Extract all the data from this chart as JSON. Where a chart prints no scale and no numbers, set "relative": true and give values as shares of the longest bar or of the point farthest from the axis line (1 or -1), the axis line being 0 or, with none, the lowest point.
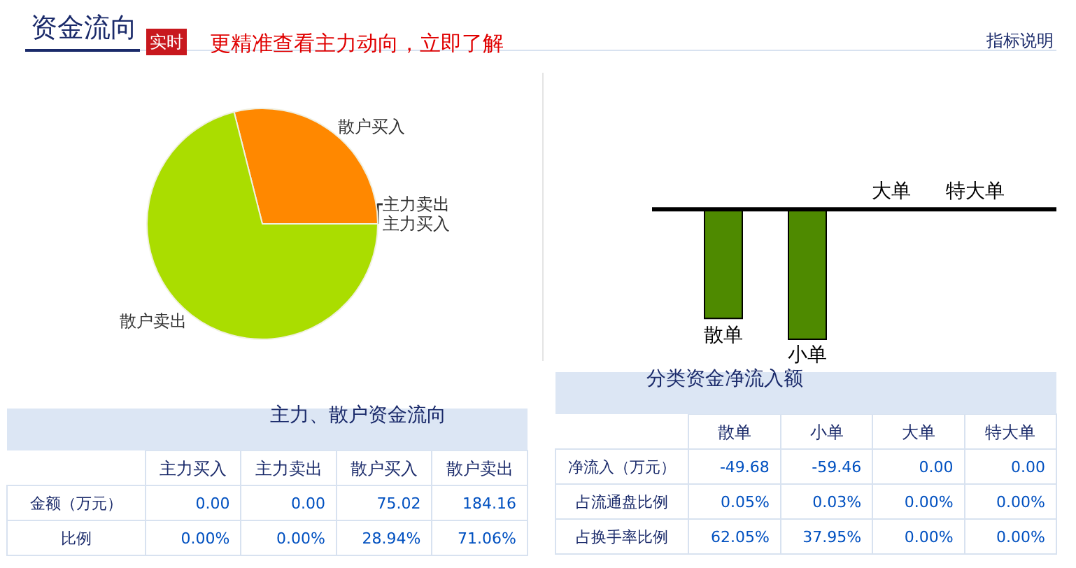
{
  "chart_data": [
    {
      "type": "pie",
      "title": "资金流向",
      "annotations": [
        "实时",
        "更精准查看主力动向，立即了解",
        "指标说明"
      ],
      "categories": [
        "主力买入",
        "主力卖出",
        "散户买入",
        "散户卖出"
      ],
      "values": [
        0,
        0,
        28.94,
        71.06
      ],
      "colors": [
        "#e03030",
        "#3070c0",
        "#ff8800",
        "#aadd00"
      ]
    },
    {
      "type": "bar",
      "relative": true,
      "categories": [
        "散单",
        "小单",
        "大单",
        "特大单"
      ],
      "values": [
        -0.84,
        -1,
        0,
        0
      ],
      "color": "#4e8a00"
    },
    {
      "type": "other",
      "title": "主力、散户资金流向",
      "categories": [
        "主力买入",
        "主力卖出",
        "散户买入",
        "散户卖出"
      ],
      "y_categories": [
        "金额（万元）",
        "比例"
      ],
      "cell_labels": [
        [
          "0.00",
          "0.00",
          "75.02",
          "184.16"
        ],
        [
          "0.00%",
          "0.00%",
          "28.94%",
          "71.06%"
        ]
      ]
    },
    {
      "type": "other",
      "title": "分类资金净流入额",
      "categories": [
        "散单",
        "小单",
        "大单",
        "特大单"
      ],
      "y_categories": [
        "净流入（万元）",
        "占流通盘比例",
        "占换手率比例"
      ],
      "cell_labels": [
        [
          "-49.68",
          "-59.46",
          "0.00",
          "0.00"
        ],
        [
          "0.05%",
          "0.03%",
          "0.00%",
          "0.00%"
        ],
        [
          "62.05%",
          "37.95%",
          "0.00%",
          "0.00%"
        ]
      ]
    }
  ]
}
